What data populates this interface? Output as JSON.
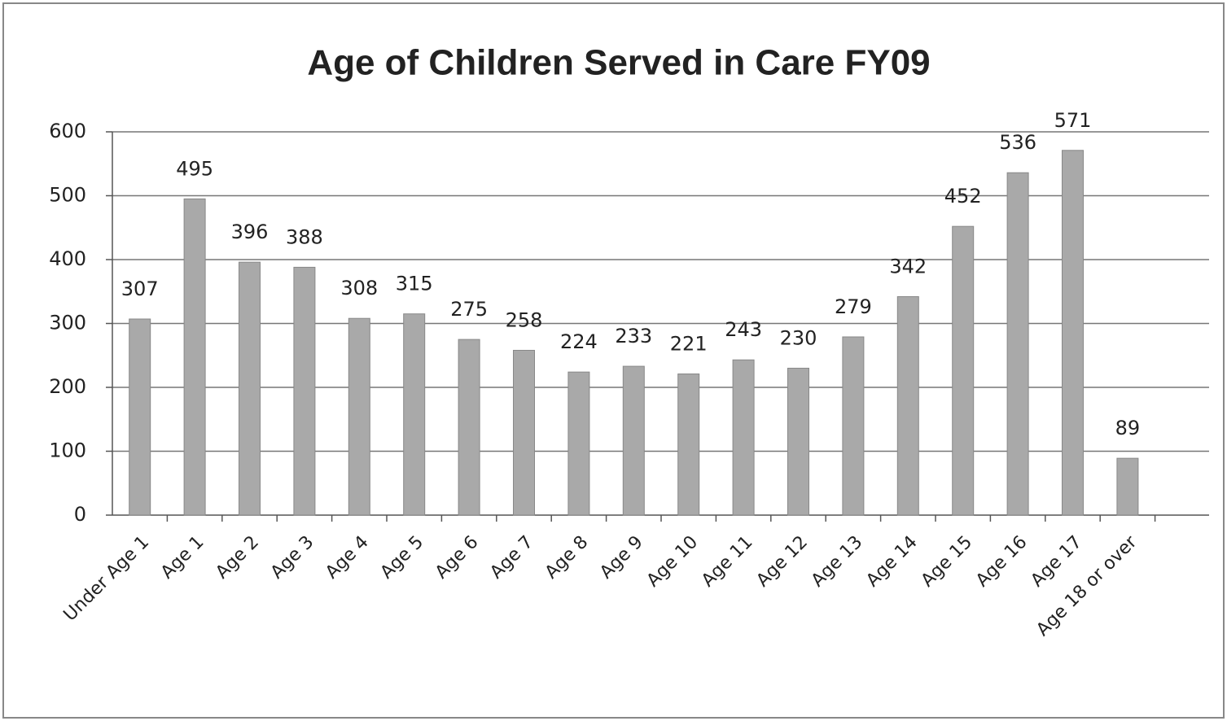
{
  "chart_data": {
    "type": "bar",
    "title": "Age of Children Served in Care FY09",
    "categories": [
      "Under Age 1",
      "Age 1",
      "Age 2",
      "Age 3",
      "Age 4",
      "Age 5",
      "Age 6",
      "Age 7",
      "Age 8",
      "Age 9",
      "Age 10",
      "Age 11",
      "Age 12",
      "Age 13",
      "Age 14",
      "Age 15",
      "Age 16",
      "Age 17",
      "Age 18 or over"
    ],
    "values": [
      307,
      495,
      396,
      388,
      308,
      315,
      275,
      258,
      224,
      233,
      221,
      243,
      230,
      279,
      342,
      452,
      536,
      571,
      89
    ],
    "color": "#a9a9a9",
    "ylim": [
      0,
      600
    ],
    "yticks": [
      0,
      100,
      200,
      300,
      400,
      500,
      600
    ],
    "grid": true
  }
}
